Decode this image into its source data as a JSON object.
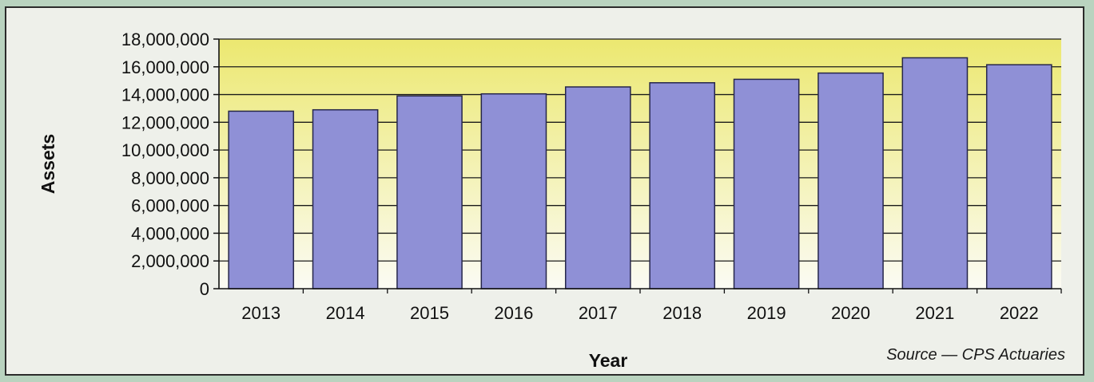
{
  "chart_data": {
    "type": "bar",
    "title": "",
    "xlabel": "Year",
    "ylabel": "Assets",
    "categories": [
      "2013",
      "2014",
      "2015",
      "2016",
      "2017",
      "2018",
      "2019",
      "2020",
      "2021",
      "2022"
    ],
    "values": [
      12800000,
      12900000,
      13900000,
      14050000,
      14550000,
      14850000,
      15100000,
      15550000,
      16650000,
      16150000
    ],
    "yticks": [
      "0",
      "2,000,000",
      "4,000,000",
      "6,000,000",
      "8,000,000",
      "10,000,000",
      "12,000,000",
      "14,000,000",
      "16,000,000",
      "18,000,000"
    ],
    "ylim": [
      0,
      18000000
    ],
    "grid": true,
    "colors": {
      "bar_fill": "#8f90d6",
      "bar_stroke": "#26264a",
      "plot_bg_top": "#ece870",
      "plot_bg_bottom": "#fbfbf4",
      "gridline": "#1a1a1a"
    }
  },
  "source_note": "Source — CPS Actuaries"
}
